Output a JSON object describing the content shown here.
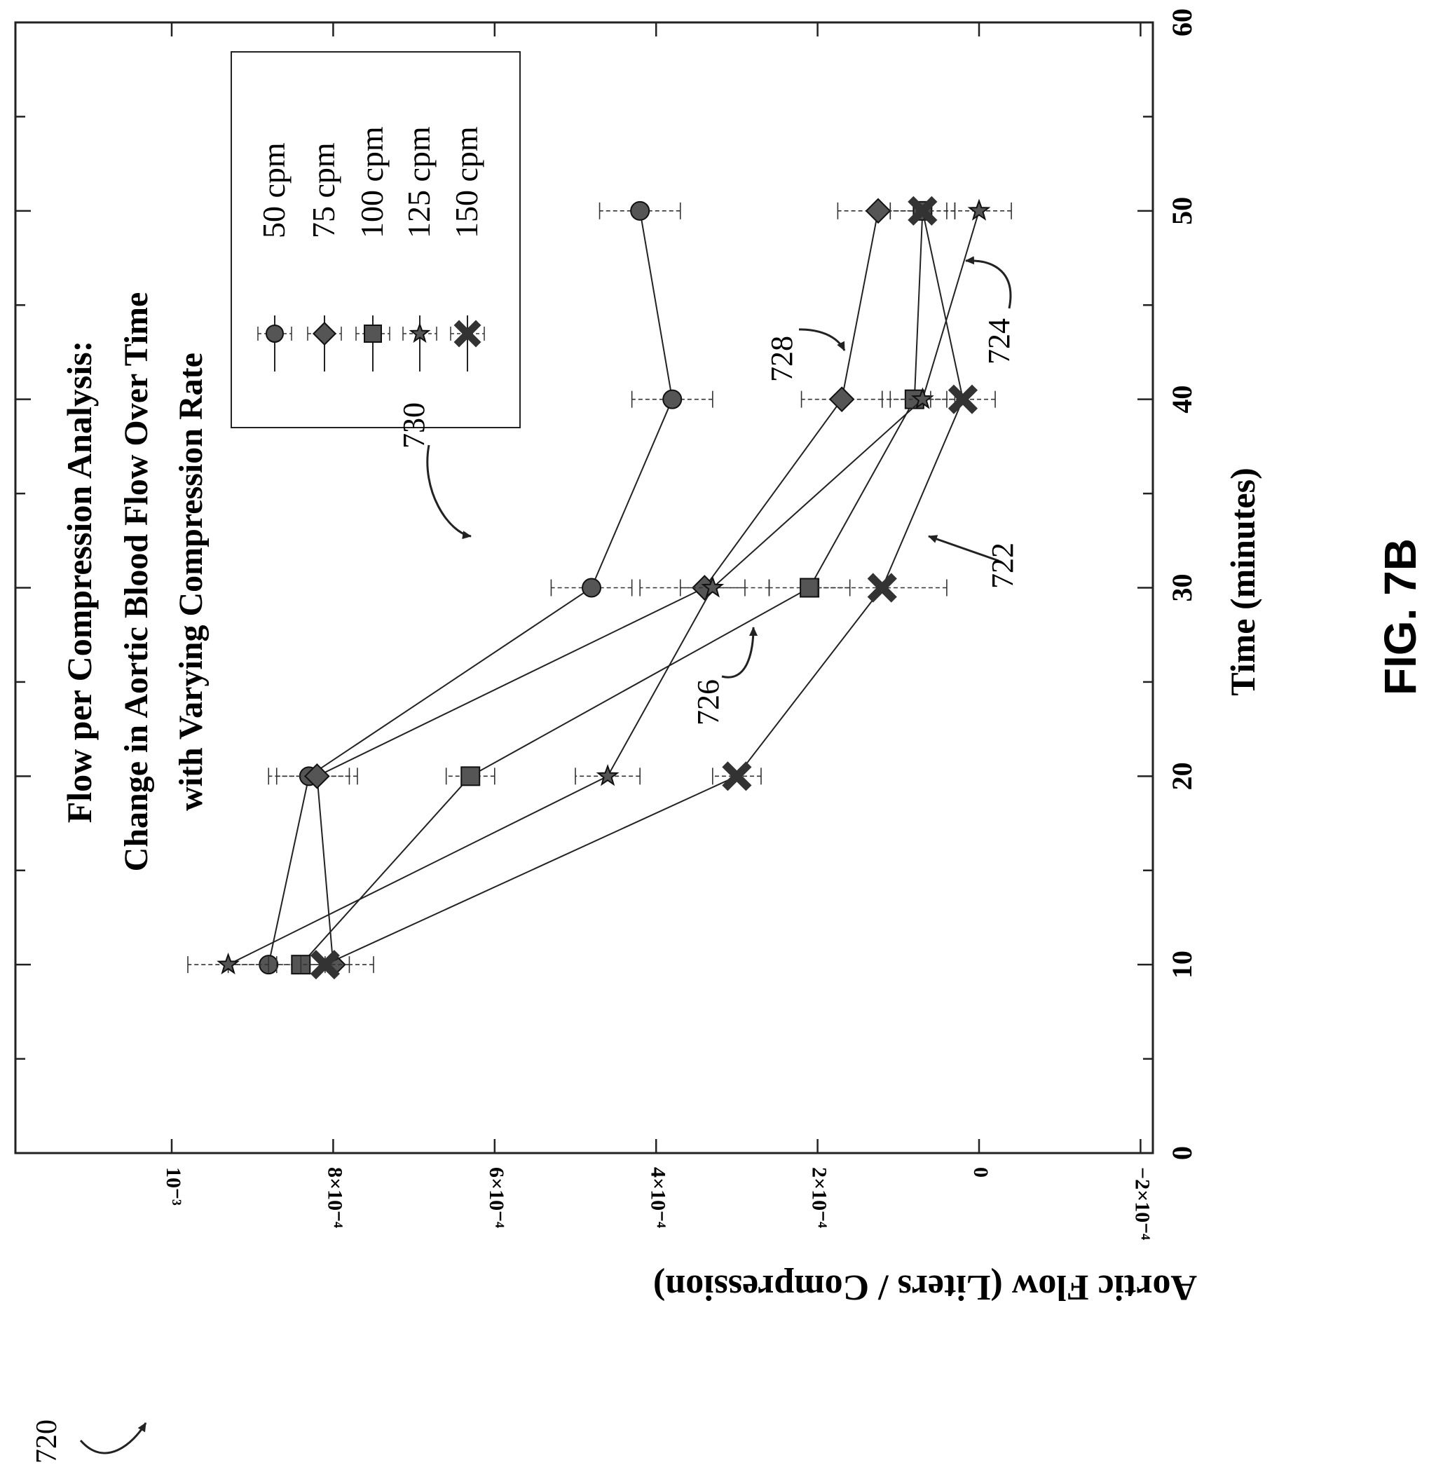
{
  "figure": {
    "number": "FIG. 7B",
    "reference": "720"
  },
  "chart_data": {
    "type": "scatter",
    "title": "Flow per Compression Analysis:",
    "subtitle_lines": [
      "Change in Aortic Blood Flow Over Time",
      "with Varying Compression Rate"
    ],
    "xlabel": "Time (minutes)",
    "ylabel": "Aortic Flow (Liters / Compression)",
    "xlim": [
      0,
      60
    ],
    "ylim": [
      -0.0002,
      0.0011
    ],
    "x_ticks": [
      0,
      10,
      20,
      30,
      40,
      50,
      60
    ],
    "x_tick_labels": [
      "0",
      "10",
      "20",
      "30",
      "40",
      "50",
      "60"
    ],
    "y_ticks": [
      0.001,
      0.0008,
      0.0006,
      0.0004,
      0.0002,
      0,
      -0.0002
    ],
    "y_tick_labels": [
      "10⁻³",
      "8×10⁻⁴",
      "6×10⁻⁴",
      "4×10⁻⁴",
      "2×10⁻⁴",
      "0",
      "−2×10⁻⁴"
    ],
    "grid": false,
    "legend_position": "top-right",
    "series": [
      {
        "name": "50 cpm",
        "marker": "circle",
        "x": [
          10,
          20,
          30,
          40,
          50
        ],
        "y": [
          0.00088,
          0.00083,
          0.00048,
          0.00038,
          0.00042
        ],
        "err": [
          5e-05,
          5e-05,
          5e-05,
          5e-05,
          5e-05
        ]
      },
      {
        "name": "75 cpm",
        "marker": "diamond",
        "x": [
          10,
          20,
          30,
          40,
          50
        ],
        "y": [
          0.0008,
          0.00082,
          0.00034,
          0.00017,
          0.000125
        ],
        "err": [
          5e-05,
          5e-05,
          8e-05,
          5e-05,
          5e-05
        ]
      },
      {
        "name": "100 cpm",
        "marker": "square",
        "x": [
          10,
          20,
          30,
          40,
          50
        ],
        "y": [
          0.00084,
          0.00063,
          0.00021,
          8e-05,
          7e-05
        ],
        "err": [
          3e-05,
          3e-05,
          5e-05,
          4e-05,
          4e-05
        ]
      },
      {
        "name": "125 cpm",
        "marker": "star",
        "x": [
          10,
          20,
          30,
          40,
          50
        ],
        "y": [
          0.00093,
          0.00046,
          0.00033,
          7e-05,
          0.0
        ],
        "err": [
          5e-05,
          4e-05,
          4e-05,
          4e-05,
          4e-05
        ]
      },
      {
        "name": "150 cpm",
        "marker": "cross",
        "x": [
          10,
          20,
          30,
          40,
          50
        ],
        "y": [
          0.00081,
          0.0003,
          0.00012,
          2e-05,
          7e-05
        ],
        "err": [
          3e-05,
          3e-05,
          8e-05,
          4e-05,
          4e-05
        ]
      }
    ],
    "annotations": [
      {
        "text": "730",
        "series": "50 cpm"
      },
      {
        "text": "728",
        "series": "75 cpm"
      },
      {
        "text": "726",
        "series": "100 cpm"
      },
      {
        "text": "724",
        "series": "125 cpm"
      },
      {
        "text": "722",
        "series": "150 cpm"
      }
    ]
  }
}
